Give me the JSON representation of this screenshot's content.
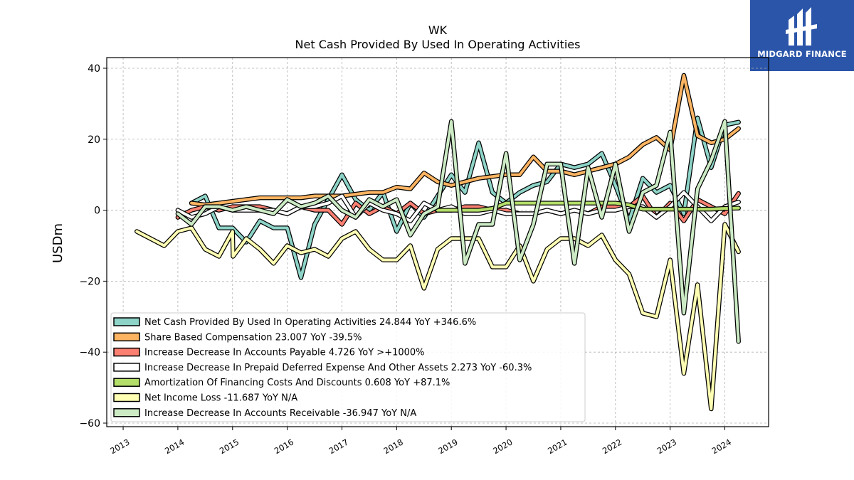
{
  "brand": {
    "name": "MIDGARD FINANCE",
    "bg": "#2b55a9"
  },
  "chart_data": {
    "type": "line",
    "title": "WK",
    "subtitle": "Net Cash Provided By Used In Operating Activities",
    "ylabel": "USDm",
    "xlabel": "",
    "xlim": [
      2012.7,
      2024.8
    ],
    "ylim": [
      -61,
      43
    ],
    "yticks": [
      -60,
      -40,
      -20,
      0,
      20,
      40
    ],
    "xticks": [
      "2013",
      "2014",
      "2015",
      "2016",
      "2017",
      "2018",
      "2019",
      "2020",
      "2021",
      "2022",
      "2023",
      "2024"
    ],
    "grid": true,
    "legend_position": "lower-left",
    "series": [
      {
        "name": "Net Cash Provided By Used In Operating Activities  24.844 YoY +346.6%",
        "color": "#8dd3c7",
        "x": [
          2014.25,
          2014.5,
          2014.75,
          2015.0,
          2015.25,
          2015.5,
          2015.75,
          2016.0,
          2016.25,
          2016.5,
          2016.75,
          2017.0,
          2017.25,
          2017.5,
          2017.75,
          2018.0,
          2018.25,
          2018.5,
          2018.75,
          2019.0,
          2019.25,
          2019.5,
          2019.75,
          2020.0,
          2020.25,
          2020.5,
          2020.75,
          2021.0,
          2021.25,
          2021.5,
          2021.75,
          2022.0,
          2022.25,
          2022.5,
          2022.75,
          2023.0,
          2023.25,
          2023.5,
          2023.75,
          2024.0,
          2024.25
        ],
        "values": [
          2,
          4,
          -5,
          -5,
          -9,
          -3,
          -5,
          -5,
          -19,
          -4,
          3,
          10,
          3,
          0,
          5,
          -6,
          2,
          -2,
          4,
          10,
          5,
          19,
          5,
          2,
          5,
          7,
          8,
          13,
          12,
          13,
          16,
          7,
          -3,
          9,
          5,
          7,
          -1,
          26,
          12,
          24,
          24.8
        ]
      },
      {
        "name": "Share Based Compensation  23.007 YoY -39.5%",
        "color": "#fdb462",
        "x": [
          2014.25,
          2014.5,
          2014.75,
          2015.0,
          2015.25,
          2015.5,
          2015.75,
          2016.0,
          2016.25,
          2016.5,
          2016.75,
          2017.0,
          2017.25,
          2017.5,
          2017.75,
          2018.0,
          2018.25,
          2018.5,
          2018.75,
          2019.0,
          2019.25,
          2019.5,
          2019.75,
          2020.0,
          2020.25,
          2020.5,
          2020.75,
          2021.0,
          2021.25,
          2021.5,
          2021.75,
          2022.0,
          2022.25,
          2022.5,
          2022.75,
          2023.0,
          2023.25,
          2023.5,
          2023.75,
          2024.0,
          2024.25
        ],
        "values": [
          2,
          1.5,
          2,
          2.5,
          3,
          3.5,
          3.5,
          3.5,
          3.5,
          4,
          4,
          4,
          4.5,
          5,
          5,
          6.5,
          6,
          10.5,
          8,
          7,
          8,
          9,
          9.5,
          10,
          10,
          15,
          11,
          11,
          10,
          11,
          12,
          13,
          15,
          18.5,
          20.5,
          17,
          38,
          21,
          19,
          20,
          23
        ]
      },
      {
        "name": "Increase Decrease In Accounts Payable  4.726 YoY >+1000%",
        "color": "#fb8072",
        "x": [
          2014.0,
          2014.25,
          2014.5,
          2014.75,
          2015.0,
          2015.25,
          2015.5,
          2015.75,
          2016.0,
          2016.25,
          2016.5,
          2016.75,
          2017.0,
          2017.25,
          2017.5,
          2017.75,
          2018.0,
          2018.25,
          2018.5,
          2018.75,
          2019.0,
          2019.25,
          2019.5,
          2019.75,
          2020.0,
          2020.25,
          2020.5,
          2020.75,
          2021.0,
          2021.25,
          2021.5,
          2021.75,
          2022.0,
          2022.25,
          2022.5,
          2022.75,
          2023.0,
          2023.25,
          2023.5,
          2023.75,
          2024.0,
          2024.25
        ],
        "values": [
          -2,
          0,
          1,
          0,
          1,
          1,
          1,
          0,
          -1,
          1,
          0,
          0,
          -4,
          2,
          -1,
          1,
          -1,
          2,
          -1,
          0,
          0,
          1,
          1,
          0,
          0,
          -1,
          -1,
          0,
          -1,
          0,
          -1,
          1,
          1,
          1,
          4,
          -2,
          2,
          -3,
          3,
          1,
          -1,
          4.7
        ]
      },
      {
        "name": "Increase Decrease In Prepaid Deferred Expense And Other Assets  2.273 YoY -60.3%",
        "color": "#ffffff",
        "x": [
          2014.0,
          2014.25,
          2014.5,
          2014.75,
          2015.0,
          2015.25,
          2015.5,
          2015.75,
          2016.0,
          2016.25,
          2016.5,
          2016.75,
          2017.0,
          2017.25,
          2017.5,
          2017.75,
          2018.0,
          2018.25,
          2018.5,
          2018.75,
          2019.0,
          2019.25,
          2019.5,
          2019.75,
          2020.0,
          2020.25,
          2020.5,
          2020.75,
          2021.0,
          2021.25,
          2021.5,
          2021.75,
          2022.0,
          2022.25,
          2022.5,
          2022.75,
          2023.0,
          2023.25,
          2023.5,
          2023.75,
          2024.0,
          2024.25
        ],
        "values": [
          0,
          -2,
          -1,
          1,
          0,
          0,
          0,
          0,
          -1,
          1,
          1,
          2,
          4,
          -2,
          2,
          0,
          -1,
          -3,
          2,
          0,
          1,
          -1,
          -1,
          0,
          -1,
          -1,
          -1,
          0,
          -1,
          0,
          -1,
          0,
          0,
          1,
          1,
          -2,
          1,
          5,
          1,
          -3,
          1,
          2.3
        ]
      },
      {
        "name": "Amortization Of Financing Costs And Discounts  0.608 YoY +87.1%",
        "color": "#b3de69",
        "x": [
          2018.75,
          2019.0,
          2019.25,
          2019.5,
          2019.75,
          2020.0,
          2020.25,
          2020.5,
          2020.75,
          2021.0,
          2021.25,
          2021.5,
          2021.75,
          2022.0,
          2022.25,
          2022.5,
          2022.75,
          2023.0,
          2023.25,
          2023.5,
          2023.75,
          2024.0,
          2024.25
        ],
        "values": [
          0,
          0,
          0,
          0,
          0.5,
          2,
          2,
          2,
          2,
          2,
          2,
          2,
          2,
          2,
          1.5,
          0.3,
          0.3,
          0.3,
          0.3,
          0.3,
          0.3,
          0.5,
          0.6
        ]
      },
      {
        "name": "Net Income Loss  -11.687 YoY N/A",
        "color": "#ffffb3",
        "x": [
          2013.25,
          2013.5,
          2013.75,
          2014.0,
          2014.25,
          2014.5,
          2014.75,
          2015.0,
          2015.01,
          2015.25,
          2015.5,
          2015.75,
          2016.0,
          2016.25,
          2016.5,
          2016.75,
          2017.0,
          2017.25,
          2017.5,
          2017.75,
          2018.0,
          2018.25,
          2018.5,
          2018.75,
          2019.0,
          2019.25,
          2019.5,
          2019.75,
          2020.0,
          2020.25,
          2020.5,
          2020.75,
          2021.0,
          2021.25,
          2021.5,
          2021.75,
          2022.0,
          2022.25,
          2022.5,
          2022.75,
          2023.0,
          2023.25,
          2023.5,
          2023.75,
          2024.0,
          2024.25
        ],
        "values": [
          -6,
          -8,
          -10,
          -6,
          -5,
          -11,
          -13,
          -6,
          -13,
          -8,
          -11,
          -15,
          -10,
          -12,
          -11,
          -13,
          -8,
          -6,
          -11,
          -14,
          -14,
          -10,
          -22,
          -11,
          -8,
          -8,
          -8,
          -16,
          -16,
          -10,
          -20,
          -11,
          -8,
          -8,
          -10,
          -7,
          -14,
          -18,
          -29,
          -30,
          -14,
          -46,
          -21,
          -56,
          -4,
          -11.7
        ]
      },
      {
        "name": "Increase Decrease In Accounts Receivable  -36.947 YoY N/A",
        "color": "#ccebc5",
        "x": [
          2014.0,
          2014.25,
          2014.5,
          2014.75,
          2015.0,
          2015.25,
          2015.5,
          2015.75,
          2016.0,
          2016.25,
          2016.5,
          2016.75,
          2017.0,
          2017.25,
          2017.5,
          2017.75,
          2018.0,
          2018.25,
          2018.5,
          2018.75,
          2019.0,
          2019.25,
          2019.5,
          2019.75,
          2020.0,
          2020.25,
          2020.5,
          2020.75,
          2021.0,
          2021.25,
          2021.5,
          2021.75,
          2022.0,
          2022.25,
          2022.5,
          2022.75,
          2023.0,
          2023.25,
          2023.5,
          2023.75,
          2024.0,
          2024.25
        ],
        "values": [
          -1,
          -4,
          1,
          1,
          0,
          1,
          0,
          -1,
          3,
          1,
          2,
          4,
          0,
          -2,
          3,
          1,
          3,
          -7,
          -1,
          1,
          25,
          -15,
          -4,
          -4,
          16,
          -14,
          -4,
          13,
          13,
          -15,
          12,
          -2,
          13,
          -6,
          5,
          7,
          22,
          -29,
          6,
          14,
          25,
          -37
        ]
      }
    ]
  }
}
